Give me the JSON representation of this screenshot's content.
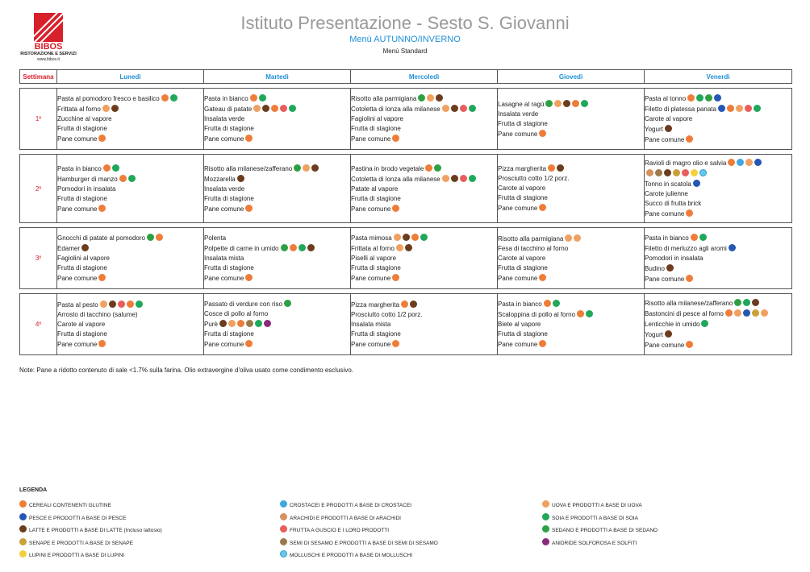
{
  "logo": {
    "name": "BIBOS",
    "sub": "RISTORAZIONE E SERVIZI",
    "web": "www.bibos.it",
    "since": "DAL 1986"
  },
  "title": "Istituto Presentazione - Sesto S. Giovanni",
  "subtitle": "Menù AUTUNNO/INVERNO",
  "menu_type": "Menù Standard",
  "header": {
    "week": "Settimana",
    "days": [
      "Lunedì",
      "Martedì",
      "Mercoledì",
      "Giovedì",
      "Venerdì"
    ]
  },
  "allergen_colors": {
    "glutine": "#ef7d3a",
    "uova": "#f0a060",
    "pesce": "#2457b4",
    "soia": "#1fa85a",
    "latte": "#6b3c1e",
    "sedano": "#2ea043",
    "senape": "#c9a03a",
    "lupini": "#f4d03f",
    "anidride": "#8a2a7a"
  },
  "weeks": [
    {
      "label": "1º",
      "days": [
        [
          {
            "name": "Pasta al pomodoro fresco e basilico",
            "icons": [
              "glutine",
              "soia"
            ]
          },
          {
            "name": "Frittata al forno",
            "icons": [
              "uova",
              "latte"
            ]
          },
          {
            "name": "Zucchine al vapore",
            "icons": []
          },
          {
            "name": "Frutta di stagione",
            "icons": []
          },
          {
            "name": "Pane comune",
            "icons": [
              "glutine"
            ]
          }
        ],
        [
          {
            "name": "Pasta in bianco",
            "icons": [
              "glutine",
              "soia"
            ]
          },
          {
            "name": "Gateau di patate",
            "icons": [
              "uova",
              "latte",
              "glutine",
              "frutta-guscio",
              "soia"
            ]
          },
          {
            "name": "Insalata verde",
            "icons": []
          },
          {
            "name": "Frutta di stagione",
            "icons": []
          },
          {
            "name": "Pane comune",
            "icons": [
              "glutine"
            ]
          }
        ],
        [
          {
            "name": "Risotto alla parmigiana",
            "icons": [
              "sedano",
              "uova",
              "latte"
            ]
          },
          {
            "name": "Cotoletta di lonza alla milanese",
            "icons": [
              "uova",
              "latte",
              "frutta-guscio",
              "soia"
            ]
          },
          {
            "name": "Fagiolini al vapore",
            "icons": []
          },
          {
            "name": "Frutta di stagione",
            "icons": []
          },
          {
            "name": "Pane comune",
            "icons": [
              "glutine"
            ]
          }
        ],
        [
          {
            "name": "Lasagne al ragù",
            "icons": [
              "sedano",
              "uova",
              "latte",
              "glutine",
              "soia"
            ]
          },
          {
            "name": "Insalata verde",
            "icons": []
          },
          {
            "name": "Frutta di stagione",
            "icons": []
          },
          {
            "name": "Pane comune",
            "icons": [
              "glutine"
            ]
          }
        ],
        [
          {
            "name": "Pasta al tonno",
            "icons": [
              "glutine",
              "soia",
              "sedano",
              "pesce"
            ]
          },
          {
            "name": "Filetto di platessa panata",
            "icons": [
              "pesce",
              "glutine",
              "uova",
              "frutta-guscio",
              "soia"
            ]
          },
          {
            "name": "Carote al vapore",
            "icons": []
          },
          {
            "name": "Yogurt",
            "icons": [
              "latte"
            ]
          },
          {
            "name": "Pane comune",
            "icons": [
              "glutine"
            ]
          }
        ]
      ]
    },
    {
      "label": "2º",
      "days": [
        [
          {
            "name": "Pasta in bianco",
            "icons": [
              "glutine",
              "soia"
            ]
          },
          {
            "name": "Hamburger di manzo",
            "icons": [
              "glutine",
              "soia"
            ]
          },
          {
            "name": "Pomodori in insalata",
            "icons": []
          },
          {
            "name": "Frutta di stagione",
            "icons": []
          },
          {
            "name": "Pane comune",
            "icons": [
              "glutine"
            ]
          }
        ],
        [
          {
            "name": "Risotto alla milanese/zafferano",
            "icons": [
              "sedano",
              "uova",
              "latte"
            ]
          },
          {
            "name": "Mozzarella",
            "icons": [
              "latte"
            ]
          },
          {
            "name": "Insalata verde",
            "icons": []
          },
          {
            "name": "Frutta di stagione",
            "icons": []
          },
          {
            "name": "Pane comune",
            "icons": [
              "glutine"
            ]
          }
        ],
        [
          {
            "name": "Pastina in brodo vegetale",
            "icons": [
              "glutine",
              "sedano"
            ]
          },
          {
            "name": "Cotoletta di lonza alla milanese",
            "icons": [
              "uova",
              "latte",
              "frutta-guscio",
              "soia"
            ]
          },
          {
            "name": "Patate al vapore",
            "icons": []
          },
          {
            "name": "Frutta di stagione",
            "icons": []
          },
          {
            "name": "Pane comune",
            "icons": [
              "glutine"
            ]
          }
        ],
        [
          {
            "name": "Pizza margherita",
            "icons": [
              "glutine",
              "latte"
            ]
          },
          {
            "name": "Prosciutto cotto 1/2 porz.",
            "icons": []
          },
          {
            "name": "Carote al vapore",
            "icons": []
          },
          {
            "name": "Frutta di stagione",
            "icons": []
          },
          {
            "name": "Pane comune",
            "icons": [
              "glutine"
            ]
          }
        ],
        [
          {
            "name": "Ravioli di magro olio e salvia",
            "icons": [
              "glutine",
              "crostacei",
              "uova",
              "pesce"
            ]
          },
          {
            "name": "",
            "icons": [
              "arachidi",
              "sesamo",
              "latte",
              "senape",
              "frutta-guscio",
              "lupini",
              "molluschi"
            ]
          },
          {
            "name": "Tonno in scatola",
            "icons": [
              "pesce"
            ]
          },
          {
            "name": "Carote julienne",
            "icons": []
          },
          {
            "name": "Succo di frutta brick",
            "icons": []
          },
          {
            "name": "Pane comune",
            "icons": [
              "glutine"
            ]
          }
        ]
      ]
    },
    {
      "label": "3º",
      "days": [
        [
          {
            "name": "Gnocchi di patate al pomodoro",
            "icons": [
              "sedano",
              "glutine"
            ]
          },
          {
            "name": "Edamer",
            "icons": [
              "latte"
            ]
          },
          {
            "name": "Fagiolini al vapore",
            "icons": []
          },
          {
            "name": "Frutta di stagione",
            "icons": []
          },
          {
            "name": "Pane comune",
            "icons": [
              "glutine"
            ]
          }
        ],
        [
          {
            "name": "Polenta",
            "icons": []
          },
          {
            "name": "Polpette di carne in umido",
            "icons": [
              "sedano",
              "glutine",
              "soia",
              "latte"
            ]
          },
          {
            "name": "Insalata mista",
            "icons": []
          },
          {
            "name": "Frutta di stagione",
            "icons": []
          },
          {
            "name": "Pane comune",
            "icons": [
              "glutine"
            ]
          }
        ],
        [
          {
            "name": "Pasta mimosa",
            "icons": [
              "uova",
              "latte",
              "glutine",
              "soia"
            ]
          },
          {
            "name": "Frittata al forno",
            "icons": [
              "uova",
              "latte"
            ]
          },
          {
            "name": "Piselli al vapore",
            "icons": []
          },
          {
            "name": "Frutta di stagione",
            "icons": []
          },
          {
            "name": "Pane comune",
            "icons": [
              "glutine"
            ]
          }
        ],
        [
          {
            "name": "Risotto alla parmigiana",
            "icons": [
              "uova",
              "uova"
            ]
          },
          {
            "name": "Fesa di tacchino al forno",
            "icons": []
          },
          {
            "name": "Carote al vapore",
            "icons": []
          },
          {
            "name": "Frutta di stagione",
            "icons": []
          },
          {
            "name": "Pane comune",
            "icons": [
              "glutine"
            ]
          }
        ],
        [
          {
            "name": "Pasta in bianco",
            "icons": [
              "glutine",
              "soia"
            ]
          },
          {
            "name": "Filetto di merluzzo agli aromi",
            "icons": [
              "pesce"
            ]
          },
          {
            "name": "Pomodori in insalata",
            "icons": []
          },
          {
            "name": "Budino",
            "icons": [
              "latte"
            ]
          },
          {
            "name": "Pane comune",
            "icons": [
              "glutine"
            ]
          }
        ]
      ]
    },
    {
      "label": "4º",
      "days": [
        [
          {
            "name": "Pasta al pesto",
            "icons": [
              "uova",
              "latte",
              "frutta-guscio",
              "glutine",
              "soia"
            ]
          },
          {
            "name": "Arrosto di tacchino (salume)",
            "icons": []
          },
          {
            "name": "Carote al vapore",
            "icons": []
          },
          {
            "name": "Frutta di stagione",
            "icons": []
          },
          {
            "name": "Pane comune",
            "icons": [
              "glutine"
            ]
          }
        ],
        [
          {
            "name": "Passato di verdure con riso",
            "icons": [
              "sedano"
            ]
          },
          {
            "name": "Cosce di pollo al forno",
            "icons": []
          },
          {
            "name": "Purè",
            "icons": [
              "latte",
              "uova",
              "glutine",
              "sesamo",
              "soia",
              "anidride"
            ]
          },
          {
            "name": "Frutta di stagione",
            "icons": []
          },
          {
            "name": "Pane comune",
            "icons": [
              "glutine"
            ]
          }
        ],
        [
          {
            "name": "Pizza margherita",
            "icons": [
              "glutine",
              "latte"
            ]
          },
          {
            "name": "Prosciutto cotto 1/2 porz.",
            "icons": []
          },
          {
            "name": "Insalata mista",
            "icons": []
          },
          {
            "name": "Frutta di stagione",
            "icons": []
          },
          {
            "name": "Pane comune",
            "icons": [
              "glutine"
            ]
          }
        ],
        [
          {
            "name": "Pasta in bianco",
            "icons": [
              "glutine",
              "soia"
            ]
          },
          {
            "name": "Scaloppina di pollo al forno",
            "icons": [
              "glutine",
              "soia"
            ]
          },
          {
            "name": "Biete al vapore",
            "icons": []
          },
          {
            "name": "Frutta di stagione",
            "icons": []
          },
          {
            "name": "Pane comune",
            "icons": [
              "glutine"
            ]
          }
        ],
        [
          {
            "name": "Risotto alla milanese/zafferano",
            "icons": [
              "sedano",
              "soia",
              "latte"
            ]
          },
          {
            "name": "Bastoncini di pesce al forno",
            "icons": [
              "glutine",
              "uova",
              "pesce",
              "senape",
              "uova"
            ]
          },
          {
            "name": "Lenticchie in umido",
            "icons": [
              "soia"
            ]
          },
          {
            "name": "Yogurt",
            "icons": [
              "latte"
            ]
          },
          {
            "name": "Pane comune",
            "icons": [
              "glutine"
            ]
          }
        ]
      ]
    }
  ],
  "note": "Note: Pane a ridotto contenuto di sale <1.7% sulla farina. Olio extravergine d'oliva usato come condimento esclusivo.",
  "legend": {
    "title": "LEGENDA",
    "items": [
      {
        "icon": "glutine",
        "label": "CEREALI CONTENENTI GLUTINE",
        "col": 0,
        "row": 0
      },
      {
        "icon": "pesce",
        "label": "PESCE E PRODOTTI A BASE DI PESCE",
        "col": 0,
        "row": 1
      },
      {
        "icon": "latte",
        "label": "LATTE E PRODOTTI A BASE DI LATTE (Incluso lattosio)",
        "col": 0,
        "row": 2
      },
      {
        "icon": "senape",
        "label": "SENAPE E PRODOTTI A BASE DI SENAPE",
        "col": 0,
        "row": 3
      },
      {
        "icon": "lupini",
        "label": "LUPINI E PRODOTTI A BASE DI LUPINI",
        "col": 0,
        "row": 4
      },
      {
        "icon": "crostacei",
        "label": "CROSTACEI E PRODOTTI A BASE DI CROSTACEI",
        "col": 1,
        "row": 0
      },
      {
        "icon": "arachidi",
        "label": "ARACHIDI E PRODOTTI A BASE DI ARACHIDI",
        "col": 1,
        "row": 1
      },
      {
        "icon": "frutta-guscio",
        "label": "FRUTTA A GUSCIO E I LORO PRODOTTI",
        "col": 1,
        "row": 2
      },
      {
        "icon": "sesamo",
        "label": "SEMI DI SESAMO E PRODOTTI A BASE DI SEMI DI SESAMO",
        "col": 1,
        "row": 3
      },
      {
        "icon": "molluschi",
        "label": "MOLLUSCHI E PRODOTTI A BASE DI MOLLUSCHI",
        "col": 1,
        "row": 4
      },
      {
        "icon": "uova",
        "label": "UOVA E PRODOTTI A BASE DI UOVA",
        "col": 2,
        "row": 0
      },
      {
        "icon": "soia",
        "label": "SOIA E PRODOTTI A BASE DI SOIA",
        "col": 2,
        "row": 1
      },
      {
        "icon": "sedano",
        "label": "SEDANO E PRODOTTI A BASE DI SEDANO",
        "col": 2,
        "row": 2
      },
      {
        "icon": "anidride",
        "label": "ANIDRIDE SOLFOROSA E SOLFITI",
        "col": 2,
        "row": 3
      }
    ]
  }
}
